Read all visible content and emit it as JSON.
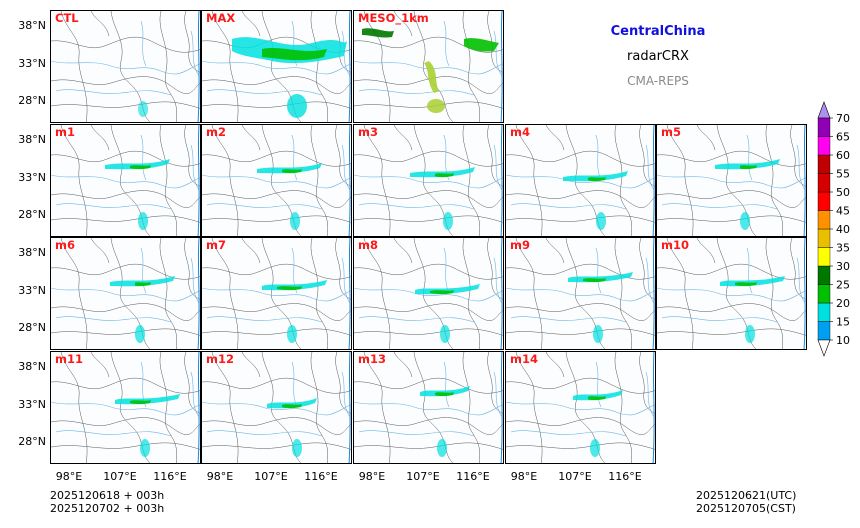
{
  "header": {
    "region": "CentralChina",
    "variable": "radarCRX",
    "system": "CMA-REPS"
  },
  "panels": [
    {
      "label": "CTL"
    },
    {
      "label": "MAX"
    },
    {
      "label": "MESO_1km"
    },
    {
      "label": "m1"
    },
    {
      "label": "m2"
    },
    {
      "label": "m3"
    },
    {
      "label": "m4"
    },
    {
      "label": "m5"
    },
    {
      "label": "m6"
    },
    {
      "label": "m7"
    },
    {
      "label": "m8"
    },
    {
      "label": "m9"
    },
    {
      "label": "m10"
    },
    {
      "label": "m11"
    },
    {
      "label": "m12"
    },
    {
      "label": "m13"
    },
    {
      "label": "m14"
    }
  ],
  "axes": {
    "lat_ticks": [
      "38°N",
      "33°N",
      "28°N"
    ],
    "lon_ticks": [
      "98°E",
      "107°E",
      "116°E"
    ]
  },
  "colorbar": {
    "levels": [
      "10",
      "15",
      "20",
      "25",
      "30",
      "35",
      "40",
      "45",
      "50",
      "55",
      "60",
      "65",
      "70"
    ],
    "colors": [
      "#00a0f0",
      "#00e0e0",
      "#00c000",
      "#007800",
      "#ffff00",
      "#e8c000",
      "#ff9000",
      "#ff0000",
      "#d60000",
      "#c00000",
      "#ff00f0",
      "#9000b4",
      "#ad90f0"
    ]
  },
  "footer": {
    "init_utc": "2025120618  +  003h",
    "init_cst": "2025120702  +  003h",
    "valid_utc": "2025120621(UTC)",
    "valid_cst": "2025120705(CST)"
  }
}
